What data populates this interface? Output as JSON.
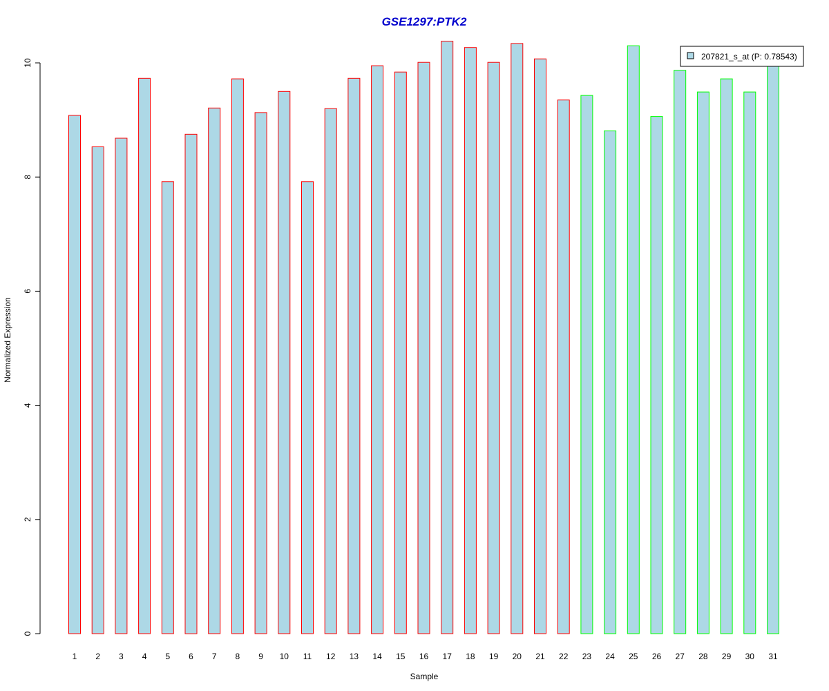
{
  "chart_data": {
    "type": "bar",
    "title": "GSE1297:PTK2",
    "xlabel": "Sample",
    "ylabel": "Normalized Expression",
    "ylim": [
      0,
      10.4
    ],
    "yticks": [
      0,
      2,
      4,
      6,
      8,
      10
    ],
    "grid": false,
    "legend_position": "top-right",
    "categories": [
      "1",
      "2",
      "3",
      "4",
      "5",
      "6",
      "7",
      "8",
      "9",
      "10",
      "11",
      "12",
      "13",
      "14",
      "15",
      "16",
      "17",
      "18",
      "19",
      "20",
      "21",
      "22",
      "23",
      "24",
      "25",
      "26",
      "27",
      "28",
      "29",
      "30",
      "31"
    ],
    "series": [
      {
        "name": "207821_s_at (P: 0.78543)",
        "values": [
          9.08,
          8.53,
          8.68,
          9.73,
          7.92,
          8.75,
          9.21,
          9.72,
          9.13,
          9.5,
          7.92,
          9.2,
          9.73,
          9.95,
          9.84,
          10.01,
          10.38,
          10.27,
          10.01,
          10.34,
          10.07,
          9.35,
          9.43,
          8.81,
          10.3,
          9.06,
          9.87,
          9.49,
          9.72,
          9.49,
          9.98
        ],
        "fill": "#add8e6"
      }
    ],
    "groups": [
      {
        "samples": [
          1,
          22
        ],
        "border_color": "#ff0000"
      },
      {
        "samples": [
          23,
          31
        ],
        "border_color": "#00ff00"
      }
    ],
    "title_color": "#0000cd"
  }
}
